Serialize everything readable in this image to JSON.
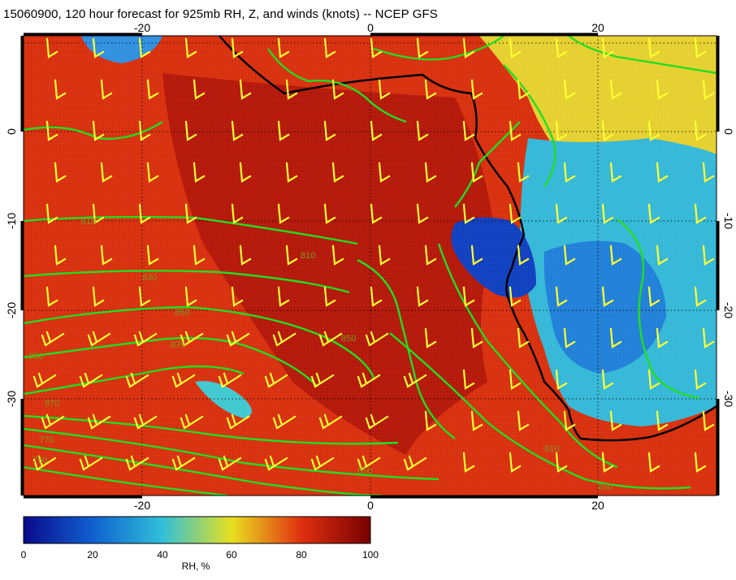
{
  "title": "15060900, 120 hour forecast for 925mb RH, Z, and winds (knots) -- NCEP GFS",
  "map": {
    "projection": "cylindrical",
    "lon_range": [
      -30,
      30
    ],
    "lat_range": [
      -40,
      10
    ],
    "x_ticks": [
      "-20",
      "0",
      "20"
    ],
    "y_ticks": [
      "0",
      "-10",
      "-20",
      "-30"
    ],
    "grid": "dotted, 10 degree",
    "coastline_color": "#000000",
    "contour_color": "#22dd22",
    "barb_color": "#ffff33",
    "contour_labels": [
      "810",
      "810",
      "830",
      "850",
      "870",
      "850",
      "850",
      "870",
      "770",
      "750",
      "850",
      "810",
      "850"
    ]
  },
  "colorbar": {
    "label": "RH, %",
    "ticks": [
      "0",
      "20",
      "40",
      "60",
      "80",
      "100"
    ],
    "stops": [
      "#0a0a8a",
      "#1060d0",
      "#30c0d8",
      "#e8e020",
      "#e03010",
      "#780000"
    ]
  }
}
